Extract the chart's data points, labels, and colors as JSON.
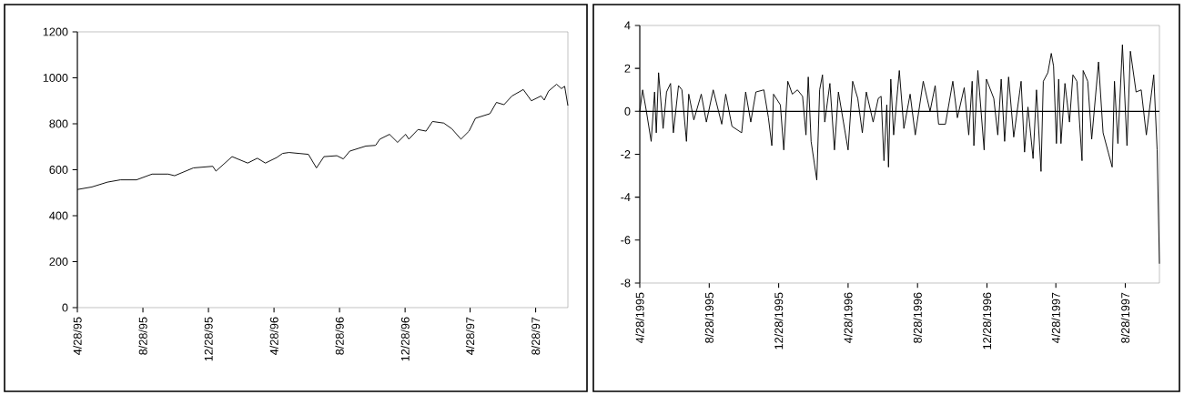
{
  "chart_data": [
    {
      "type": "line",
      "color": "#000000",
      "x": [
        "1995-04-28",
        "1995-05-25",
        "1995-06-23",
        "1995-07-17",
        "1995-08-16",
        "1995-09-14",
        "1995-10-14",
        "1995-10-26",
        "1995-11-30",
        "1996-01-05",
        "1996-01-11",
        "1996-02-10",
        "1996-03-10",
        "1996-03-28",
        "1996-04-12",
        "1996-05-03",
        "1996-05-14",
        "1996-05-26",
        "1996-07-01",
        "1996-07-16",
        "1996-07-30",
        "1996-08-23",
        "1996-09-04",
        "1996-09-16",
        "1996-10-16",
        "1996-11-03",
        "1996-11-11",
        "1996-11-29",
        "1996-12-14",
        "1996-12-29",
        "1997-01-04",
        "1997-01-21",
        "1997-02-05",
        "1997-02-17",
        "1997-03-10",
        "1997-03-25",
        "1997-04-11",
        "1997-04-26",
        "1997-05-08",
        "1997-06-04",
        "1997-06-16",
        "1997-06-30",
        "1997-07-15",
        "1997-08-05",
        "1997-08-20",
        "1997-09-07",
        "1997-09-13",
        "1997-09-21",
        "1997-10-06",
        "1997-10-15",
        "1997-10-21",
        "1997-10-27"
      ],
      "values": [
        514,
        525,
        546,
        556,
        556,
        581,
        581,
        574,
        608,
        615,
        594,
        657,
        629,
        650,
        629,
        653,
        671,
        675,
        667,
        608,
        657,
        661,
        647,
        681,
        703,
        706,
        733,
        754,
        719,
        754,
        733,
        775,
        768,
        810,
        803,
        778,
        733,
        768,
        824,
        844,
        893,
        883,
        921,
        949,
        900,
        921,
        903,
        942,
        972,
        953,
        963,
        879
      ],
      "xlim": [
        "1995-04-28",
        "1997-10-27"
      ],
      "ylim": [
        0,
        1200
      ],
      "yticks": [
        0,
        200,
        400,
        600,
        800,
        1000,
        1200
      ],
      "xticks": [
        {
          "value": "1995-04-28",
          "label": "4/28/95"
        },
        {
          "value": "1995-08-28",
          "label": "8/28/95"
        },
        {
          "value": "1995-12-28",
          "label": "12/28/95"
        },
        {
          "value": "1996-04-28",
          "label": "4/28/96"
        },
        {
          "value": "1996-08-28",
          "label": "8/28/96"
        },
        {
          "value": "1996-12-28",
          "label": "12/28/96"
        },
        {
          "value": "1997-04-28",
          "label": "4/28/97"
        },
        {
          "value": "1997-08-28",
          "label": "8/28/97"
        }
      ]
    },
    {
      "type": "line",
      "color": "#000000",
      "x": [
        "1995-04-28",
        "1995-05-03",
        "1995-05-09",
        "1995-05-18",
        "1995-05-24",
        "1995-05-27",
        "1995-05-31",
        "1995-06-08",
        "1995-06-14",
        "1995-06-21",
        "1995-06-26",
        "1995-07-05",
        "1995-07-11",
        "1995-07-19",
        "1995-07-23",
        "1995-08-01",
        "1995-08-14",
        "1995-08-23",
        "1995-09-04",
        "1995-09-19",
        "1995-09-26",
        "1995-10-07",
        "1995-10-24",
        "1995-10-31",
        "1995-11-09",
        "1995-11-18",
        "1995-12-02",
        "1995-12-10",
        "1995-12-16",
        "1995-12-19",
        "1995-12-31",
        "1996-01-06",
        "1996-01-13",
        "1996-01-21",
        "1996-01-30",
        "1996-02-08",
        "1996-02-14",
        "1996-02-18",
        "1996-02-23",
        "1996-03-04",
        "1996-03-09",
        "1996-03-14",
        "1996-03-18",
        "1996-03-27",
        "1996-04-04",
        "1996-04-11",
        "1996-04-28",
        "1996-05-06",
        "1996-05-15",
        "1996-05-23",
        "1996-05-30",
        "1996-06-11",
        "1996-06-20",
        "1996-06-25",
        "1996-06-30",
        "1996-07-05",
        "1996-07-08",
        "1996-07-12",
        "1996-07-17",
        "1996-07-27",
        "1996-08-04",
        "1996-08-15",
        "1996-08-24",
        "1996-09-07",
        "1996-09-19",
        "1996-09-28",
        "1996-10-04",
        "1996-10-16",
        "1996-10-29",
        "1996-11-06",
        "1996-11-18",
        "1996-11-26",
        "1996-12-02",
        "1996-12-05",
        "1996-12-12",
        "1996-12-23",
        "1996-12-27",
        "1997-01-09",
        "1997-01-16",
        "1997-01-22",
        "1997-01-28",
        "1997-02-04",
        "1997-02-13",
        "1997-02-26",
        "1997-03-04",
        "1997-03-10",
        "1997-03-19",
        "1997-03-25",
        "1997-04-02",
        "1997-04-06",
        "1997-04-14",
        "1997-04-20",
        "1997-04-24",
        "1997-04-29",
        "1997-05-03",
        "1997-05-07",
        "1997-05-14",
        "1997-05-22",
        "1997-05-28",
        "1997-06-04",
        "1997-06-13",
        "1997-06-15",
        "1997-06-23",
        "1997-06-30",
        "1997-07-12",
        "1997-07-20",
        "1997-07-29",
        "1997-08-05",
        "1997-08-09",
        "1997-08-15",
        "1997-08-23",
        "1997-08-31",
        "1997-09-06",
        "1997-09-16",
        "1997-09-25",
        "1997-10-04",
        "1997-10-17",
        "1997-10-23",
        "1997-10-27"
      ],
      "values": [
        0,
        1.0,
        0.1,
        -1.4,
        0.9,
        -1.0,
        1.8,
        -0.8,
        0.9,
        1.3,
        -1.0,
        1.2,
        1.0,
        -1.4,
        0.8,
        -0.4,
        0.8,
        -0.5,
        1.0,
        -0.6,
        0.8,
        -0.7,
        -1.0,
        0.9,
        -0.5,
        0.9,
        1.0,
        -0.3,
        -1.6,
        0.8,
        0.3,
        -1.8,
        1.4,
        0.8,
        1.0,
        0.7,
        -1.1,
        1.6,
        -1.4,
        -3.2,
        1.0,
        1.7,
        -0.5,
        1.3,
        -1.8,
        0.9,
        -1.8,
        1.4,
        0.6,
        -1.0,
        0.9,
        -0.5,
        0.6,
        0.7,
        -2.3,
        0.3,
        -2.6,
        1.5,
        -1.1,
        1.9,
        -0.8,
        0.8,
        -1.1,
        1.4,
        0,
        1.2,
        -0.6,
        -0.6,
        1.4,
        -0.3,
        1.1,
        -1.1,
        1.4,
        -1.6,
        1.9,
        -1.8,
        1.5,
        0.6,
        -1.1,
        1.5,
        -1.4,
        1.6,
        -1.2,
        1.4,
        -1.9,
        0.2,
        -2.2,
        1.0,
        -2.8,
        1.4,
        1.8,
        2.7,
        2.1,
        -1.5,
        1.5,
        -1.5,
        1.3,
        -0.5,
        1.7,
        1.4,
        -2.3,
        1.9,
        1.4,
        -1.3,
        2.3,
        -1.0,
        -1.9,
        -2.6,
        1.4,
        -1.5,
        3.1,
        -1.6,
        2.8,
        0.9,
        1.0,
        -1.1,
        1.7,
        -1.8,
        -7.1
      ],
      "xlim": [
        "1995-04-28",
        "1997-10-27"
      ],
      "ylim": [
        -8,
        4
      ],
      "yticks": [
        -8,
        -6,
        -4,
        -2,
        0,
        2,
        4
      ],
      "xticks": [
        {
          "value": "1995-04-28",
          "label": "4/28/1995"
        },
        {
          "value": "1995-08-28",
          "label": "8/28/1995"
        },
        {
          "value": "1995-12-28",
          "label": "12/28/1995"
        },
        {
          "value": "1996-04-28",
          "label": "4/28/1996"
        },
        {
          "value": "1996-08-28",
          "label": "8/28/1996"
        },
        {
          "value": "1996-12-28",
          "label": "12/28/1996"
        },
        {
          "value": "1997-04-28",
          "label": "4/28/1997"
        },
        {
          "value": "1997-08-28",
          "label": "8/28/1997"
        }
      ],
      "ref_lines": [
        {
          "axis": "y",
          "value": 0,
          "color": "#000000"
        }
      ]
    }
  ]
}
